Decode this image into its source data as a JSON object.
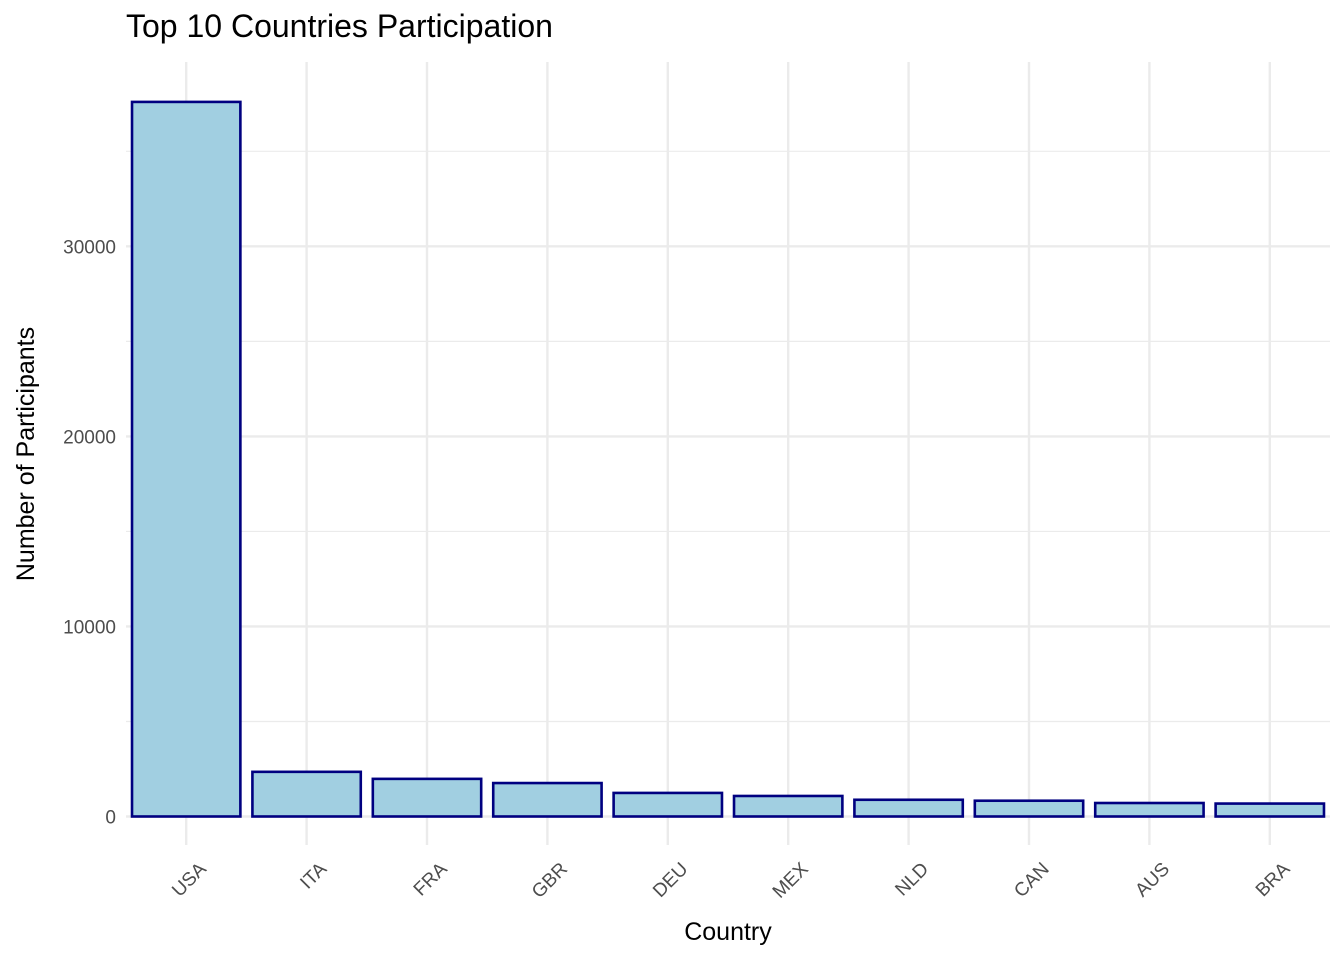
{
  "chart_data": {
    "type": "bar",
    "title": "Top 10 Countries Participation",
    "xlabel": "Country",
    "ylabel": "Number of Participants",
    "categories": [
      "USA",
      "ITA",
      "FRA",
      "GBR",
      "DEU",
      "MEX",
      "NLD",
      "CAN",
      "AUS",
      "BRA"
    ],
    "values": [
      37600,
      2350,
      1980,
      1760,
      1240,
      1080,
      880,
      830,
      710,
      680
    ],
    "ylim": [
      -1500,
      39700
    ],
    "yticks": [
      0,
      10000,
      20000,
      30000
    ],
    "ytick_labels": [
      "0",
      "10000",
      "20000",
      "30000"
    ],
    "grid": true,
    "bar_fill": "#a1cfe1",
    "bar_stroke": "#000080",
    "gridline_color": "#ebebeb"
  }
}
